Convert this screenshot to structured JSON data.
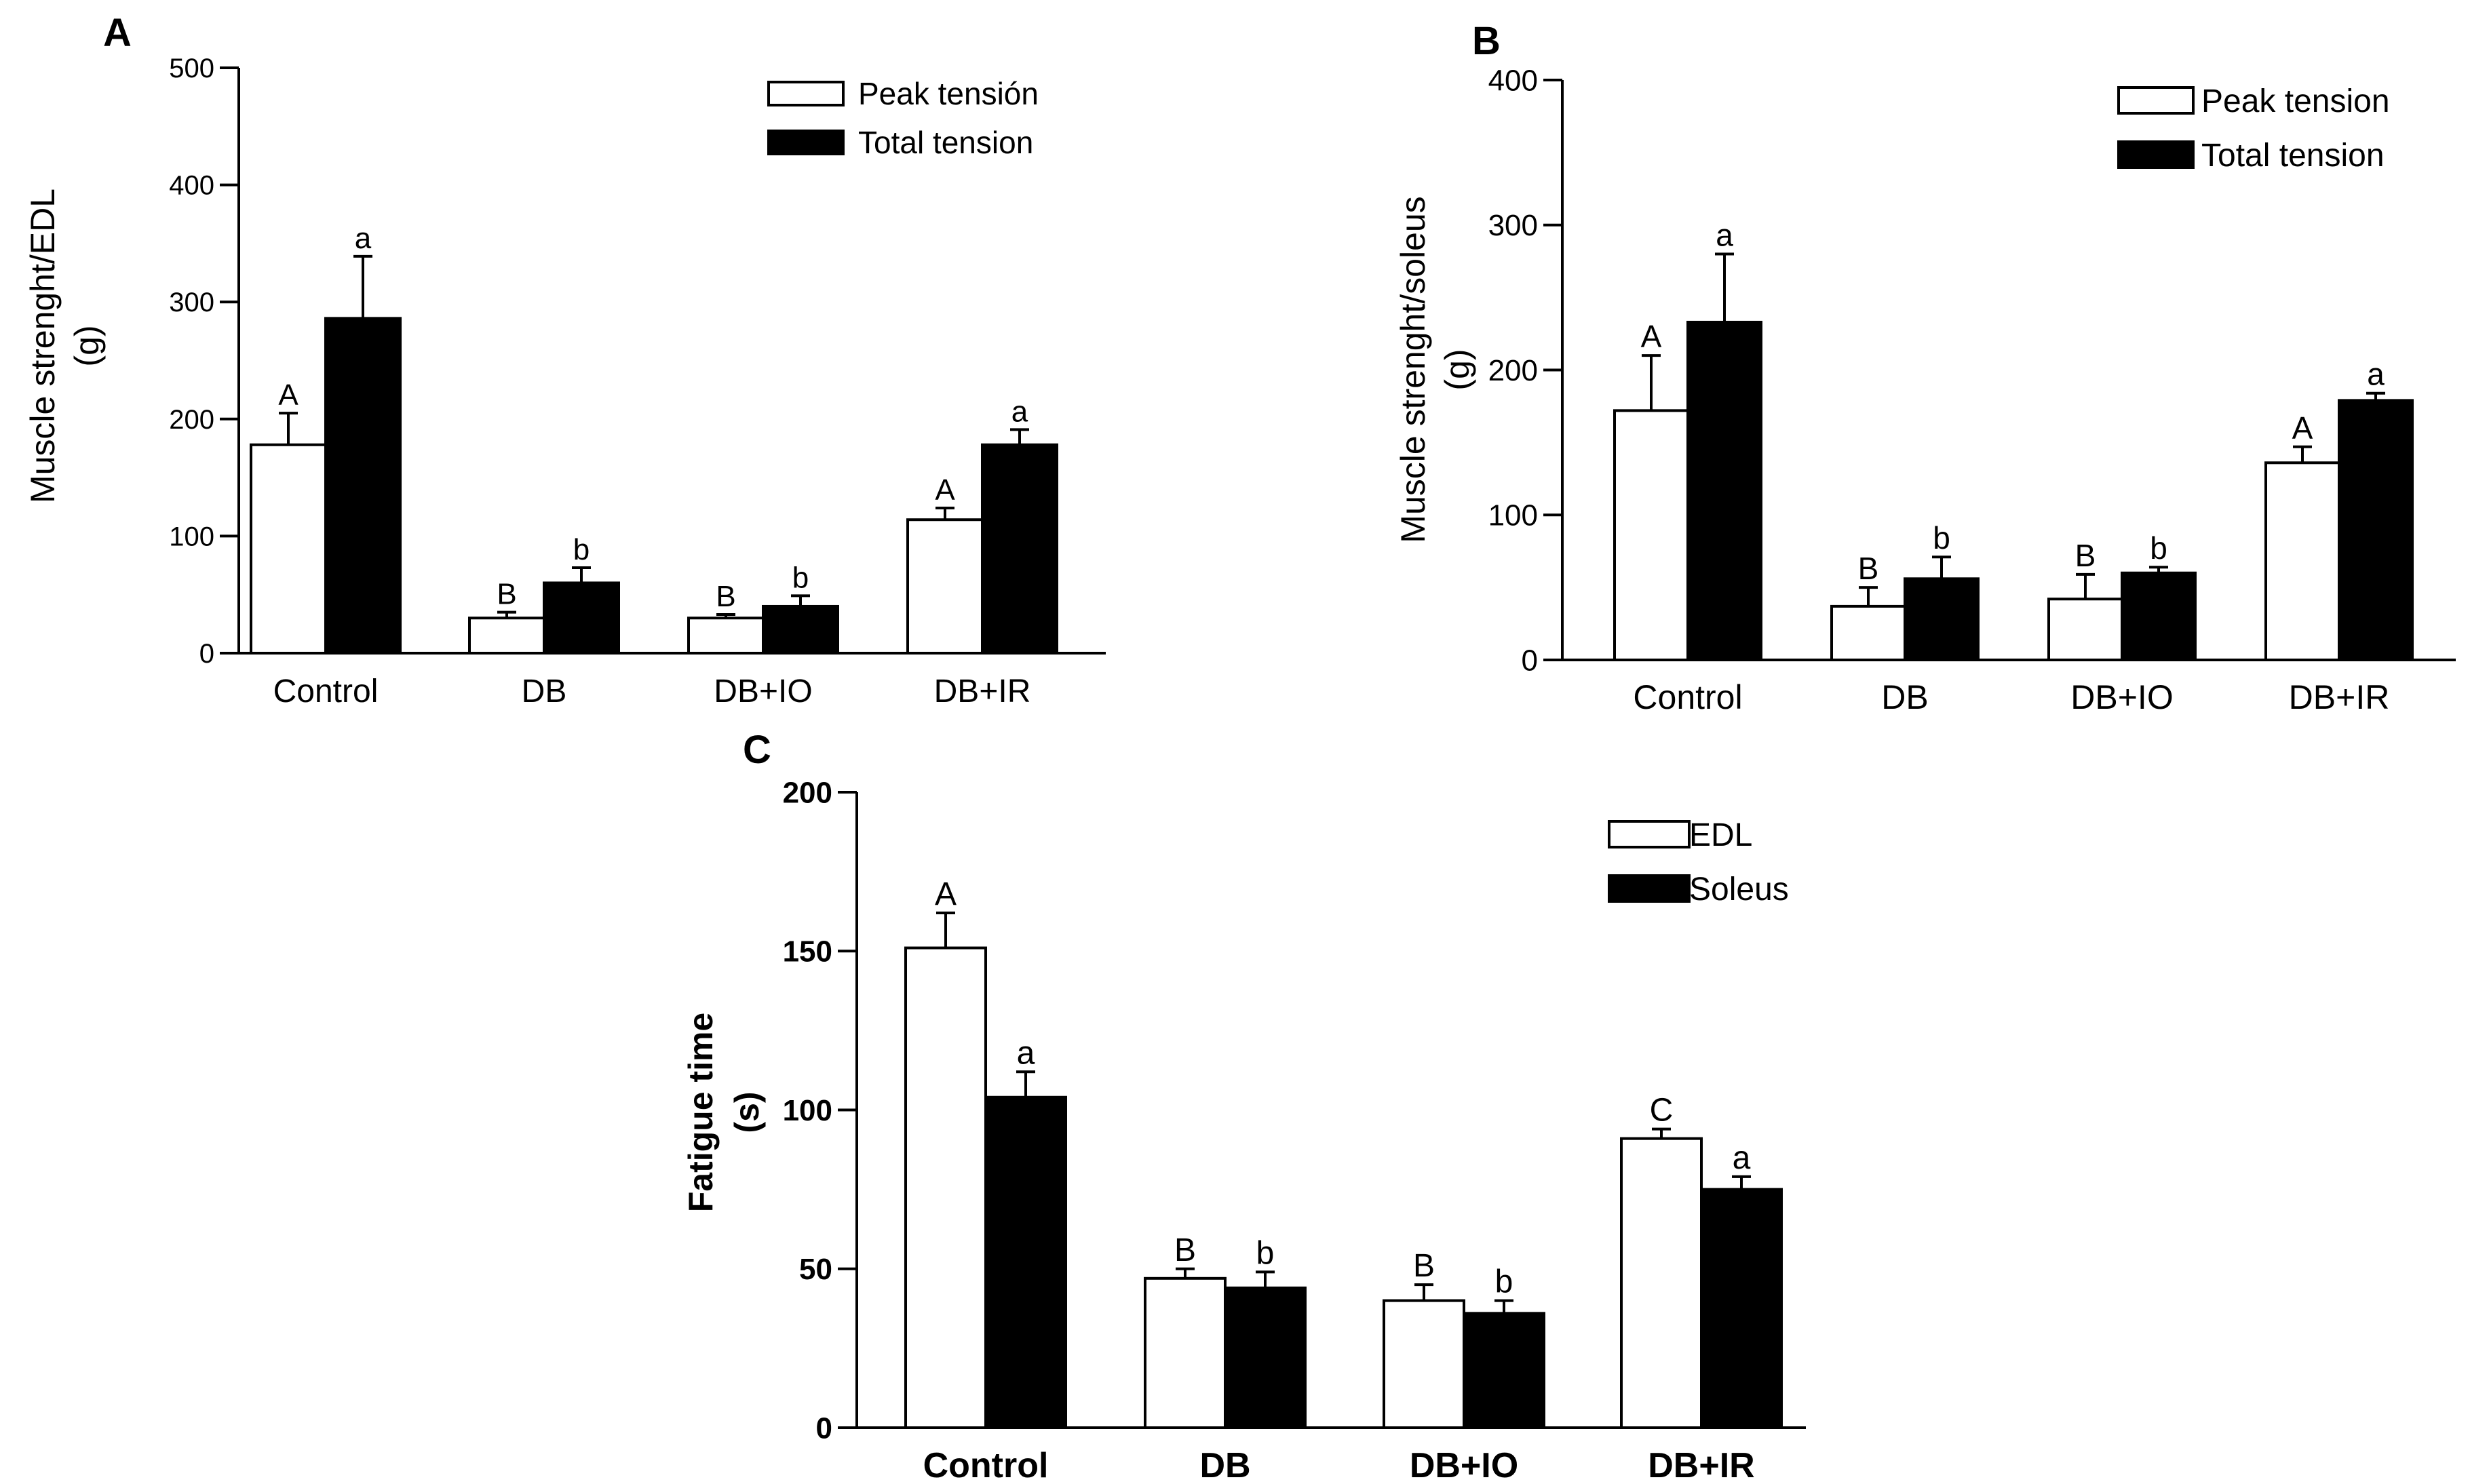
{
  "chart_data": [
    {
      "panel": "A",
      "type": "bar",
      "categories": [
        "Control",
        "DB",
        "DB+IO",
        "DB+IR"
      ],
      "ylabel_line1": "Muscle strenght/EDL",
      "ylabel_line2": "(g)",
      "xlabel": "",
      "ylim": [
        0,
        500
      ],
      "yticks": [
        0,
        100,
        200,
        300,
        400,
        500
      ],
      "bold_axis_text": false,
      "series": [
        {
          "name": "Peak tensión",
          "fill": "#ffffff",
          "values": [
            178,
            30,
            30,
            114
          ],
          "errors": [
            27,
            5,
            3,
            10
          ],
          "letters": [
            "A",
            "B",
            "B",
            "A"
          ]
        },
        {
          "name": "Total tension",
          "fill": "#000000",
          "values": [
            286,
            60,
            40,
            178
          ],
          "errors": [
            53,
            13,
            9,
            13
          ],
          "letters": [
            "a",
            "b",
            "b",
            "a"
          ]
        }
      ],
      "legend_position": "top-right"
    },
    {
      "panel": "B",
      "type": "bar",
      "categories": [
        "Control",
        "DB",
        "DB+IO",
        "DB+IR"
      ],
      "ylabel_line1": "Muscle strenght/soleus",
      "ylabel_line2": "(g)",
      "xlabel": "",
      "ylim": [
        0,
        400
      ],
      "yticks": [
        0,
        100,
        200,
        300,
        400
      ],
      "bold_axis_text": false,
      "series": [
        {
          "name": "Peak tension",
          "fill": "#ffffff",
          "values": [
            172,
            37,
            42,
            136
          ],
          "errors": [
            38,
            13,
            17,
            11
          ],
          "letters": [
            "A",
            "B",
            "B",
            "A"
          ]
        },
        {
          "name": "Total tension",
          "fill": "#000000",
          "values": [
            233,
            56,
            60,
            179
          ],
          "errors": [
            47,
            15,
            4,
            5
          ],
          "letters": [
            "a",
            "b",
            "b",
            "a"
          ]
        }
      ],
      "legend_position": "top-right"
    },
    {
      "panel": "C",
      "type": "bar",
      "categories": [
        "Control",
        "DB",
        "DB+IO",
        "DB+IR"
      ],
      "ylabel_line1": "Fatigue time",
      "ylabel_line2": "(s)",
      "xlabel": "",
      "ylim": [
        0,
        200
      ],
      "yticks": [
        0,
        50,
        100,
        150,
        200
      ],
      "bold_axis_text": true,
      "series": [
        {
          "name": "EDL",
          "fill": "#ffffff",
          "values": [
            151,
            47,
            40,
            91
          ],
          "errors": [
            11,
            3,
            5,
            3
          ],
          "letters": [
            "A",
            "B",
            "B",
            "C"
          ]
        },
        {
          "name": "Soleus",
          "fill": "#000000",
          "values": [
            104,
            44,
            36,
            75
          ],
          "errors": [
            8,
            5,
            4,
            4
          ],
          "letters": [
            "a",
            "b",
            "b",
            "a"
          ]
        }
      ],
      "legend_position": "top-right"
    }
  ]
}
